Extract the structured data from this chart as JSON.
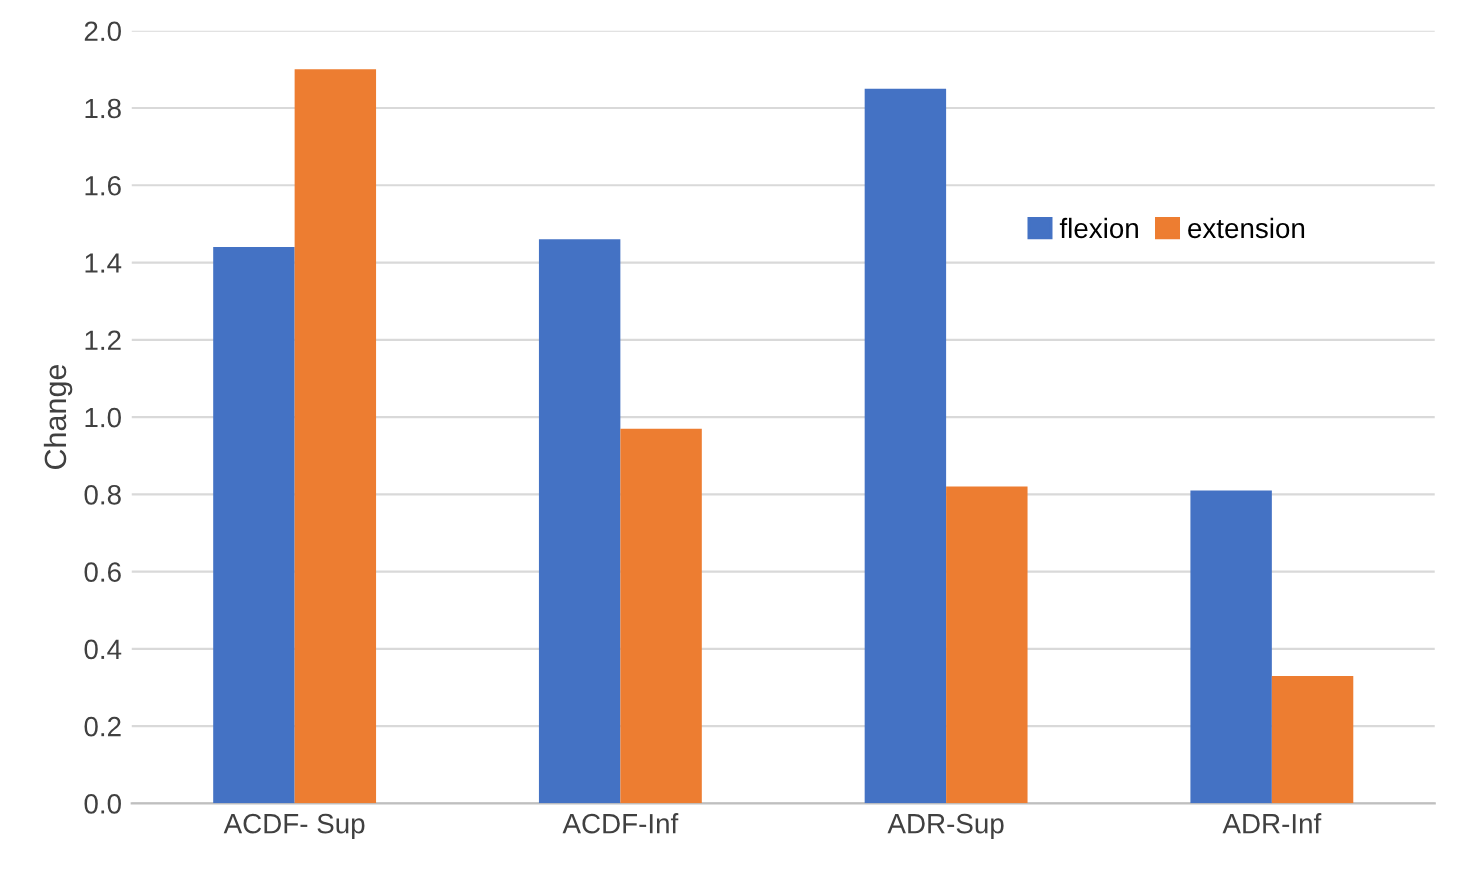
{
  "chart_data": {
    "type": "bar",
    "ylabel": "Change",
    "categories": [
      "ACDF- Sup",
      "ACDF-Inf",
      "ADR-Sup",
      "ADR-Inf"
    ],
    "series": [
      {
        "name": "flexion",
        "color": "#4472c4",
        "values": [
          1.44,
          1.46,
          1.85,
          0.81
        ]
      },
      {
        "name": "extension",
        "color": "#ed7d31",
        "values": [
          1.9,
          0.97,
          0.82,
          0.33
        ]
      }
    ],
    "ylim": [
      0,
      2
    ],
    "yticks": [
      {
        "value": 0,
        "label": "0.0"
      },
      {
        "value": 0.2,
        "label": "0.2"
      },
      {
        "value": 0.4,
        "label": "0.4"
      },
      {
        "value": 0.6,
        "label": "0.6"
      },
      {
        "value": 0.8,
        "label": "0.8"
      },
      {
        "value": 1.0,
        "label": "1.0"
      },
      {
        "value": 1.2,
        "label": "1.2"
      },
      {
        "value": 1.4,
        "label": "1.4"
      },
      {
        "value": 1.6,
        "label": "1.6"
      },
      {
        "value": 1.8,
        "label": "1.8"
      },
      {
        "value": 2.0,
        "label": "2.0"
      }
    ],
    "grid": "y",
    "legend": "top right"
  }
}
